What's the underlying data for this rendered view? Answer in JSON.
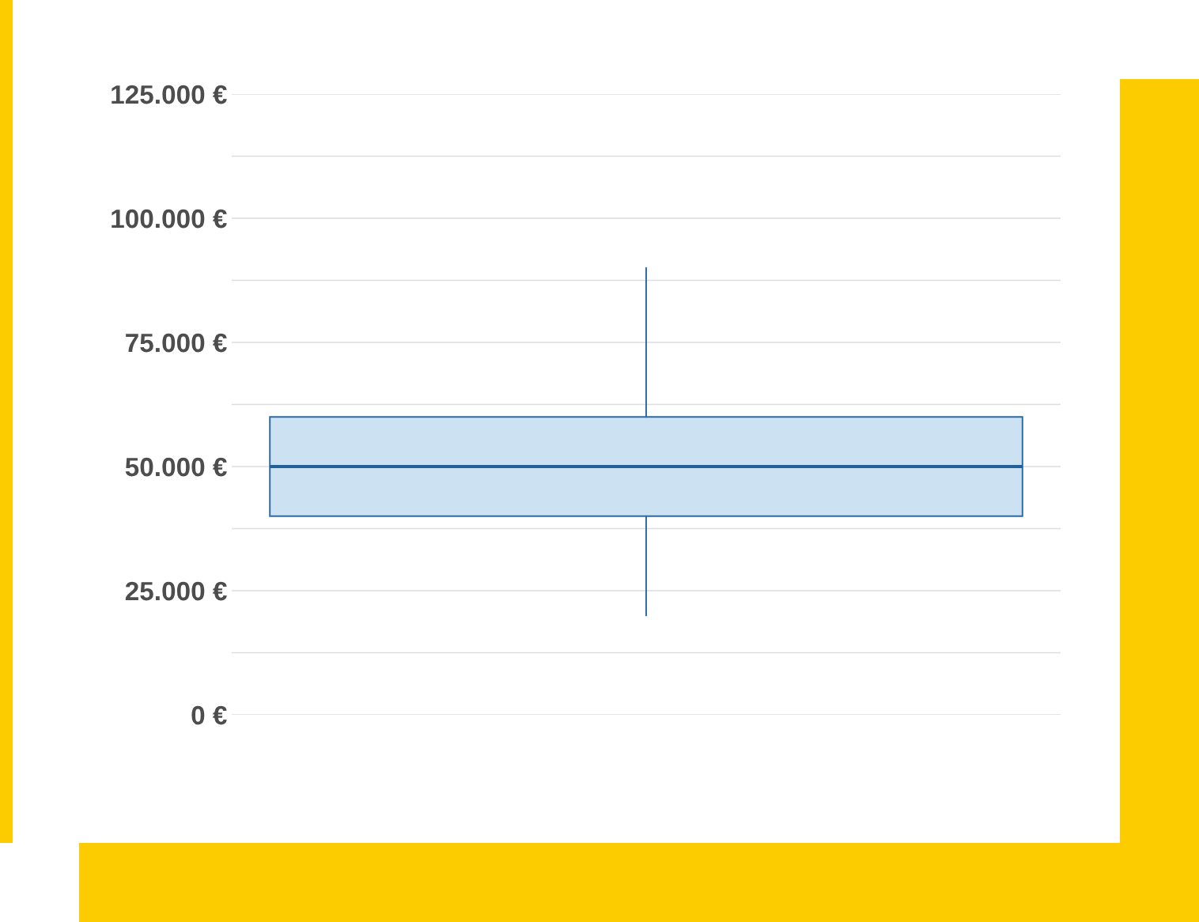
{
  "chart_data": {
    "type": "box",
    "categories": [
      null
    ],
    "series": [
      {
        "color": "#cce1f1",
        "boxes": [
          {
            "low": 20000,
            "q1": 40000,
            "median": 50000,
            "q3": 60000,
            "high": 90000
          }
        ]
      }
    ],
    "ylim": [
      0,
      125000
    ],
    "yticks": [
      {
        "value": 0,
        "label": "0 €"
      },
      {
        "value": 12500,
        "label": null
      },
      {
        "value": 25000,
        "label": "25.000 €"
      },
      {
        "value": 37500,
        "label": null
      },
      {
        "value": 50000,
        "label": "50.000 €"
      },
      {
        "value": 62500,
        "label": null
      },
      {
        "value": 75000,
        "label": "75.000 €"
      },
      {
        "value": 87500,
        "label": null
      },
      {
        "value": 100000,
        "label": "100.000 €"
      },
      {
        "value": 112500,
        "label": null
      },
      {
        "value": 125000,
        "label": "125.000 €"
      }
    ],
    "grid": "y",
    "tick_labels": "y"
  }
}
